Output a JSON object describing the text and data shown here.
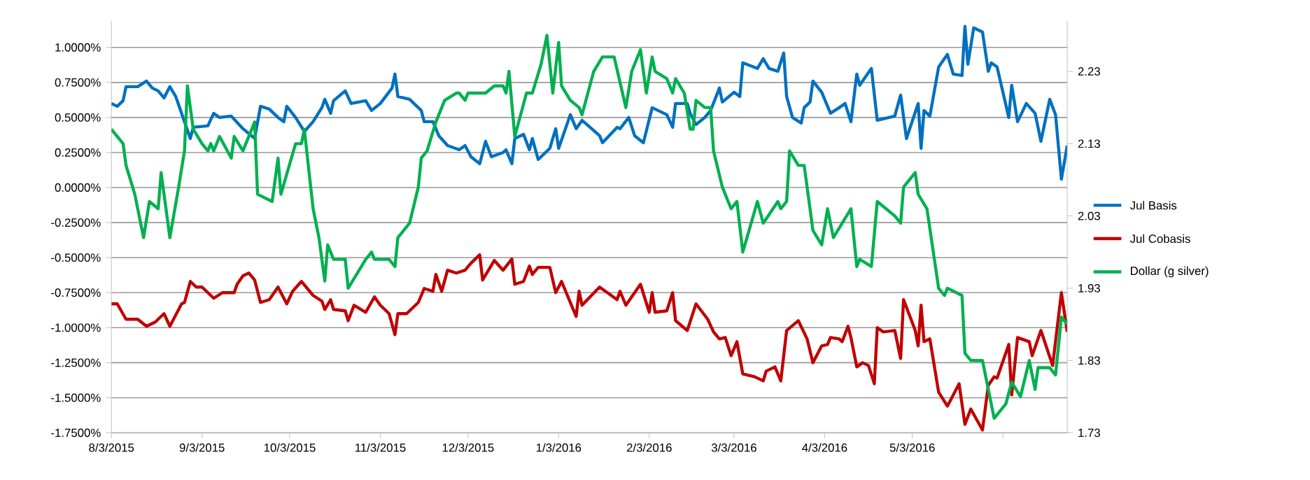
{
  "chart_data": {
    "type": "line",
    "grid": "y",
    "legend": "right",
    "xlim": [
      "2015-08-03",
      "2016-06-25"
    ],
    "xticks": [
      {
        "value": "2015-08-03",
        "label": "8/3/2015"
      },
      {
        "value": "2015-09-03",
        "label": "9/3/2015"
      },
      {
        "value": "2015-10-03",
        "label": "10/3/2015"
      },
      {
        "value": "2015-11-03",
        "label": "11/3/2015"
      },
      {
        "value": "2015-12-03",
        "label": "12/3/2015"
      },
      {
        "value": "2016-01-03",
        "label": "1/3/2016"
      },
      {
        "value": "2016-02-03",
        "label": "2/3/2016"
      },
      {
        "value": "2016-03-03",
        "label": "3/3/2016"
      },
      {
        "value": "2016-04-03",
        "label": "4/3/2016"
      },
      {
        "value": "2016-05-03",
        "label": "5/3/2016"
      },
      {
        "value": "2016-06-03",
        "label": null
      }
    ],
    "ylim": [
      -1.75,
      1.19
    ],
    "yticks": [
      {
        "value": 1.0,
        "label": "1.0000%"
      },
      {
        "value": 0.75,
        "label": "0.7500%"
      },
      {
        "value": 0.5,
        "label": "0.5000%"
      },
      {
        "value": 0.25,
        "label": "0.2500%"
      },
      {
        "value": 0,
        "label": "0.0000%"
      },
      {
        "value": -0.25,
        "label": "-0.2500%"
      },
      {
        "value": -0.5,
        "label": "-0.5000%"
      },
      {
        "value": -0.75,
        "label": "-0.7500%"
      },
      {
        "value": -1.0,
        "label": "-1.0000%"
      },
      {
        "value": -1.25,
        "label": "-1.2500%"
      },
      {
        "value": -1.5,
        "label": "-1.5000%"
      },
      {
        "value": -1.75,
        "label": "-1.7500%"
      }
    ],
    "y2lim": [
      1.73,
      2.3
    ],
    "y2ticks": [
      1.73,
      1.83,
      1.93,
      2.03,
      2.13,
      2.23
    ],
    "series": [
      {
        "name": "Jul Basis",
        "color": "#0070c0",
        "x": [
          "2015-08-03",
          "2015-08-05",
          "2015-08-07",
          "2015-08-08",
          "2015-08-12",
          "2015-08-15",
          "2015-08-17",
          "2015-08-19",
          "2015-08-21",
          "2015-08-23",
          "2015-08-25",
          "2015-08-28",
          "2015-08-30",
          "2015-08-31",
          "2015-09-05",
          "2015-09-07",
          "2015-09-09",
          "2015-09-13",
          "2015-09-17",
          "2015-09-21",
          "2015-09-23",
          "2015-09-26",
          "2015-09-29",
          "2015-10-01",
          "2015-10-02",
          "2015-10-05",
          "2015-10-08",
          "2015-10-11",
          "2015-10-14",
          "2015-10-15",
          "2015-10-17",
          "2015-10-18",
          "2015-10-22",
          "2015-10-24",
          "2015-10-29",
          "2015-10-31",
          "2015-11-03",
          "2015-11-07",
          "2015-11-08",
          "2015-11-09",
          "2015-11-13",
          "2015-11-17",
          "2015-11-18",
          "2015-11-21",
          "2015-11-23",
          "2015-11-26",
          "2015-11-30",
          "2015-12-02",
          "2015-12-04",
          "2015-12-07",
          "2015-12-09",
          "2015-12-11",
          "2015-12-15",
          "2015-12-16",
          "2015-12-18",
          "2015-12-19",
          "2015-12-22",
          "2015-12-24",
          "2015-12-25",
          "2015-12-27",
          "2015-12-31",
          "2016-01-02",
          "2016-01-03",
          "2016-01-07",
          "2016-01-09",
          "2016-01-11",
          "2016-01-17",
          "2016-01-18",
          "2016-01-23",
          "2016-01-24",
          "2016-01-27",
          "2016-01-29",
          "2016-02-01",
          "2016-02-04",
          "2016-02-09",
          "2016-02-11",
          "2016-02-12",
          "2016-02-16",
          "2016-02-17",
          "2016-02-19",
          "2016-02-22",
          "2016-02-24",
          "2016-02-27",
          "2016-02-28",
          "2016-03-03",
          "2016-03-05",
          "2016-03-06",
          "2016-03-11",
          "2016-03-13",
          "2016-03-15",
          "2016-03-18",
          "2016-03-20",
          "2016-03-21",
          "2016-03-23",
          "2016-03-26",
          "2016-03-27",
          "2016-03-29",
          "2016-03-30",
          "2016-04-02",
          "2016-04-05",
          "2016-04-08",
          "2016-04-10",
          "2016-04-12",
          "2016-04-14",
          "2016-04-15",
          "2016-04-19",
          "2016-04-21",
          "2016-04-27",
          "2016-04-29",
          "2016-05-01",
          "2016-05-05",
          "2016-05-06",
          "2016-05-07",
          "2016-05-09",
          "2016-05-12",
          "2016-05-15",
          "2016-05-17",
          "2016-05-20",
          "2016-05-21",
          "2016-05-22",
          "2016-05-24",
          "2016-05-27",
          "2016-05-29",
          "2016-05-30",
          "2016-06-01",
          "2016-06-05",
          "2016-06-06",
          "2016-06-08",
          "2016-06-11",
          "2016-06-14",
          "2016-06-16",
          "2016-06-19",
          "2016-06-21",
          "2016-06-23",
          "2016-06-25"
        ],
        "values": [
          0.6,
          0.58,
          0.62,
          0.72,
          0.72,
          0.76,
          0.71,
          0.69,
          0.64,
          0.72,
          0.65,
          0.47,
          0.35,
          0.43,
          0.44,
          0.53,
          0.5,
          0.51,
          0.42,
          0.35,
          0.58,
          0.56,
          0.5,
          0.47,
          0.58,
          0.5,
          0.4,
          0.47,
          0.57,
          0.63,
          0.53,
          0.62,
          0.69,
          0.6,
          0.62,
          0.55,
          0.6,
          0.71,
          0.81,
          0.65,
          0.63,
          0.55,
          0.47,
          0.47,
          0.37,
          0.3,
          0.27,
          0.3,
          0.22,
          0.17,
          0.33,
          0.22,
          0.25,
          0.27,
          0.17,
          0.35,
          0.38,
          0.27,
          0.35,
          0.2,
          0.28,
          0.42,
          0.28,
          0.52,
          0.42,
          0.48,
          0.37,
          0.32,
          0.43,
          0.42,
          0.5,
          0.37,
          0.32,
          0.57,
          0.52,
          0.43,
          0.6,
          0.6,
          0.53,
          0.45,
          0.5,
          0.55,
          0.71,
          0.61,
          0.68,
          0.65,
          0.89,
          0.85,
          0.92,
          0.85,
          0.83,
          0.96,
          0.65,
          0.5,
          0.46,
          0.57,
          0.61,
          0.76,
          0.68,
          0.53,
          0.57,
          0.6,
          0.47,
          0.81,
          0.73,
          0.85,
          0.48,
          0.51,
          0.66,
          0.35,
          0.6,
          0.28,
          0.55,
          0.51,
          0.86,
          0.95,
          0.81,
          0.8,
          1.15,
          0.88,
          1.14,
          1.11,
          0.83,
          0.89,
          0.86,
          0.5,
          0.73,
          0.47,
          0.6,
          0.53,
          0.33,
          0.63,
          0.52,
          0.06,
          0.3
        ]
      },
      {
        "name": "Jul Cobasis",
        "color": "#c00000",
        "x": [
          "2015-08-03",
          "2015-08-05",
          "2015-08-08",
          "2015-08-12",
          "2015-08-15",
          "2015-08-18",
          "2015-08-21",
          "2015-08-23",
          "2015-08-27",
          "2015-08-28",
          "2015-08-30",
          "2015-09-01",
          "2015-09-03",
          "2015-09-07",
          "2015-09-10",
          "2015-09-14",
          "2015-09-15",
          "2015-09-17",
          "2015-09-19",
          "2015-09-21",
          "2015-09-23",
          "2015-09-26",
          "2015-09-29",
          "2015-10-02",
          "2015-10-04",
          "2015-10-07",
          "2015-10-11",
          "2015-10-14",
          "2015-10-15",
          "2015-10-17",
          "2015-10-18",
          "2015-10-22",
          "2015-10-23",
          "2015-10-25",
          "2015-10-29",
          "2015-11-01",
          "2015-11-03",
          "2015-11-06",
          "2015-11-08",
          "2015-11-09",
          "2015-11-12",
          "2015-11-16",
          "2015-11-18",
          "2015-11-21",
          "2015-11-22",
          "2015-11-24",
          "2015-11-26",
          "2015-11-29",
          "2015-12-02",
          "2015-12-04",
          "2015-12-07",
          "2015-12-08",
          "2015-12-12",
          "2015-12-15",
          "2015-12-18",
          "2015-12-19",
          "2015-12-22",
          "2015-12-24",
          "2015-12-25",
          "2015-12-27",
          "2015-12-31",
          "2016-01-02",
          "2016-01-04",
          "2016-01-09",
          "2016-01-10",
          "2016-01-11",
          "2016-01-17",
          "2016-01-23",
          "2016-01-24",
          "2016-01-26",
          "2016-01-31",
          "2016-02-03",
          "2016-02-04",
          "2016-02-05",
          "2016-02-09",
          "2016-02-11",
          "2016-02-12",
          "2016-02-16",
          "2016-02-19",
          "2016-02-23",
          "2016-02-25",
          "2016-02-27",
          "2016-02-29",
          "2016-03-02",
          "2016-03-04",
          "2016-03-06",
          "2016-03-10",
          "2016-03-13",
          "2016-03-14",
          "2016-03-17",
          "2016-03-19",
          "2016-03-21",
          "2016-03-25",
          "2016-03-28",
          "2016-03-30",
          "2016-04-02",
          "2016-04-04",
          "2016-04-05",
          "2016-04-08",
          "2016-04-09",
          "2016-04-11",
          "2016-04-12",
          "2016-04-14",
          "2016-04-16",
          "2016-04-18",
          "2016-04-20",
          "2016-04-21",
          "2016-04-23",
          "2016-04-27",
          "2016-04-29",
          "2016-04-30",
          "2016-05-04",
          "2016-05-05",
          "2016-05-06",
          "2016-05-07",
          "2016-05-09",
          "2016-05-12",
          "2016-05-15",
          "2016-05-19",
          "2016-05-21",
          "2016-05-23",
          "2016-05-27",
          "2016-05-29",
          "2016-05-31",
          "2016-06-01",
          "2016-06-05",
          "2016-06-06",
          "2016-06-08",
          "2016-06-12",
          "2016-06-13",
          "2016-06-16",
          "2016-06-20",
          "2016-06-23",
          "2016-06-25"
        ],
        "values": [
          -0.83,
          -0.83,
          -0.94,
          -0.94,
          -0.99,
          -0.96,
          -0.9,
          -0.99,
          -0.83,
          -0.82,
          -0.67,
          -0.71,
          -0.71,
          -0.79,
          -0.75,
          -0.75,
          -0.69,
          -0.63,
          -0.61,
          -0.66,
          -0.82,
          -0.8,
          -0.71,
          -0.83,
          -0.74,
          -0.67,
          -0.77,
          -0.81,
          -0.87,
          -0.8,
          -0.87,
          -0.88,
          -0.95,
          -0.84,
          -0.89,
          -0.78,
          -0.84,
          -0.9,
          -1.05,
          -0.9,
          -0.9,
          -0.82,
          -0.72,
          -0.74,
          -0.62,
          -0.74,
          -0.59,
          -0.61,
          -0.59,
          -0.54,
          -0.48,
          -0.66,
          -0.52,
          -0.59,
          -0.51,
          -0.69,
          -0.67,
          -0.56,
          -0.62,
          -0.57,
          -0.57,
          -0.75,
          -0.67,
          -0.92,
          -0.74,
          -0.84,
          -0.71,
          -0.8,
          -0.74,
          -0.84,
          -0.69,
          -0.89,
          -0.75,
          -0.89,
          -0.88,
          -0.75,
          -0.95,
          -1.02,
          -0.83,
          -0.94,
          -1.03,
          -1.08,
          -1.07,
          -1.2,
          -1.1,
          -1.33,
          -1.35,
          -1.38,
          -1.31,
          -1.28,
          -1.38,
          -1.02,
          -0.95,
          -1.08,
          -1.25,
          -1.13,
          -1.12,
          -1.07,
          -1.08,
          -1.1,
          -0.99,
          -1.07,
          -1.28,
          -1.25,
          -1.27,
          -1.4,
          -1.0,
          -1.03,
          -1.02,
          -1.22,
          -0.8,
          -1.02,
          -1.13,
          -0.84,
          -1.1,
          -1.08,
          -1.46,
          -1.56,
          -1.4,
          -1.69,
          -1.58,
          -1.73,
          -1.41,
          -1.35,
          -1.36,
          -1.12,
          -1.48,
          -1.07,
          -1.1,
          -1.2,
          -1.02,
          -1.27,
          -0.75,
          -1.03
        ]
      },
      {
        "name": "Dollar (g silver)",
        "color": "#00b050",
        "axis": "y2",
        "x": [
          "2015-08-03",
          "2015-08-05",
          "2015-08-07",
          "2015-08-08",
          "2015-08-11",
          "2015-08-14",
          "2015-08-16",
          "2015-08-19",
          "2015-08-20",
          "2015-08-23",
          "2015-08-26",
          "2015-08-28",
          "2015-08-29",
          "2015-08-31",
          "2015-09-03",
          "2015-09-05",
          "2015-09-06",
          "2015-09-07",
          "2015-09-09",
          "2015-09-13",
          "2015-09-14",
          "2015-09-17",
          "2015-09-21",
          "2015-09-22",
          "2015-09-27",
          "2015-09-29",
          "2015-09-30",
          "2015-10-05",
          "2015-10-07",
          "2015-10-08",
          "2015-10-11",
          "2015-10-13",
          "2015-10-15",
          "2015-10-16",
          "2015-10-18",
          "2015-10-22",
          "2015-10-23",
          "2015-10-26",
          "2015-10-29",
          "2015-10-31",
          "2015-11-01",
          "2015-11-06",
          "2015-11-08",
          "2015-11-09",
          "2015-11-13",
          "2015-11-16",
          "2015-11-17",
          "2015-11-19",
          "2015-11-22",
          "2015-11-25",
          "2015-11-29",
          "2015-11-30",
          "2015-12-02",
          "2015-12-03",
          "2015-12-07",
          "2015-12-09",
          "2015-12-12",
          "2015-12-15",
          "2015-12-16",
          "2015-12-17",
          "2015-12-19",
          "2015-12-23",
          "2015-12-25",
          "2015-12-28",
          "2015-12-30",
          "2016-01-01",
          "2016-01-03",
          "2016-01-04",
          "2016-01-07",
          "2016-01-10",
          "2016-01-11",
          "2016-01-15",
          "2016-01-18",
          "2016-01-22",
          "2016-01-26",
          "2016-01-28",
          "2016-01-30",
          "2016-01-31",
          "2016-02-02",
          "2016-02-04",
          "2016-02-05",
          "2016-02-09",
          "2016-02-11",
          "2016-02-12",
          "2016-02-15",
          "2016-02-17",
          "2016-02-18",
          "2016-02-19",
          "2016-02-22",
          "2016-02-24",
          "2016-02-25",
          "2016-02-28",
          "2016-03-02",
          "2016-03-04",
          "2016-03-06",
          "2016-03-11",
          "2016-03-13",
          "2016-03-18",
          "2016-03-19",
          "2016-03-21",
          "2016-03-22",
          "2016-03-25",
          "2016-03-27",
          "2016-03-30",
          "2016-04-02",
          "2016-04-04",
          "2016-04-06",
          "2016-04-12",
          "2016-04-14",
          "2016-04-15",
          "2016-04-19",
          "2016-04-21",
          "2016-04-27",
          "2016-04-29",
          "2016-04-30",
          "2016-05-04",
          "2016-05-05",
          "2016-05-08",
          "2016-05-12",
          "2016-05-14",
          "2016-05-15",
          "2016-05-20",
          "2016-05-21",
          "2016-05-23",
          "2016-05-27",
          "2016-05-31",
          "2016-06-04",
          "2016-06-06",
          "2016-06-09",
          "2016-06-12",
          "2016-06-14",
          "2016-06-15",
          "2016-06-19",
          "2016-06-21",
          "2016-06-23",
          "2016-06-25"
        ],
        "values": [
          2.15,
          2.14,
          2.13,
          2.1,
          2.06,
          2.0,
          2.05,
          2.04,
          2.09,
          2.0,
          2.07,
          2.12,
          2.21,
          2.15,
          2.13,
          2.12,
          2.13,
          2.12,
          2.14,
          2.11,
          2.14,
          2.12,
          2.16,
          2.06,
          2.05,
          2.11,
          2.06,
          2.13,
          2.13,
          2.15,
          2.04,
          2.0,
          1.94,
          1.99,
          1.97,
          1.97,
          1.93,
          1.95,
          1.97,
          1.98,
          1.97,
          1.97,
          1.96,
          2.0,
          2.02,
          2.07,
          2.11,
          2.12,
          2.16,
          2.19,
          2.2,
          2.2,
          2.19,
          2.2,
          2.2,
          2.2,
          2.21,
          2.21,
          2.2,
          2.23,
          2.14,
          2.2,
          2.2,
          2.24,
          2.28,
          2.2,
          2.27,
          2.21,
          2.19,
          2.18,
          2.17,
          2.23,
          2.25,
          2.25,
          2.18,
          2.23,
          2.25,
          2.26,
          2.2,
          2.25,
          2.23,
          2.22,
          2.2,
          2.22,
          2.2,
          2.15,
          2.15,
          2.19,
          2.18,
          2.18,
          2.12,
          2.07,
          2.04,
          2.05,
          1.98,
          2.05,
          2.02,
          2.05,
          2.04,
          2.05,
          2.12,
          2.1,
          2.1,
          2.01,
          1.99,
          2.04,
          2.0,
          2.04,
          1.96,
          1.97,
          1.96,
          2.05,
          2.03,
          2.02,
          2.07,
          2.09,
          2.06,
          2.04,
          1.93,
          1.92,
          1.93,
          1.92,
          1.84,
          1.83,
          1.83,
          1.75,
          1.77,
          1.8,
          1.78,
          1.83,
          1.79,
          1.82,
          1.82,
          1.81,
          1.89,
          1.88
        ]
      }
    ]
  }
}
